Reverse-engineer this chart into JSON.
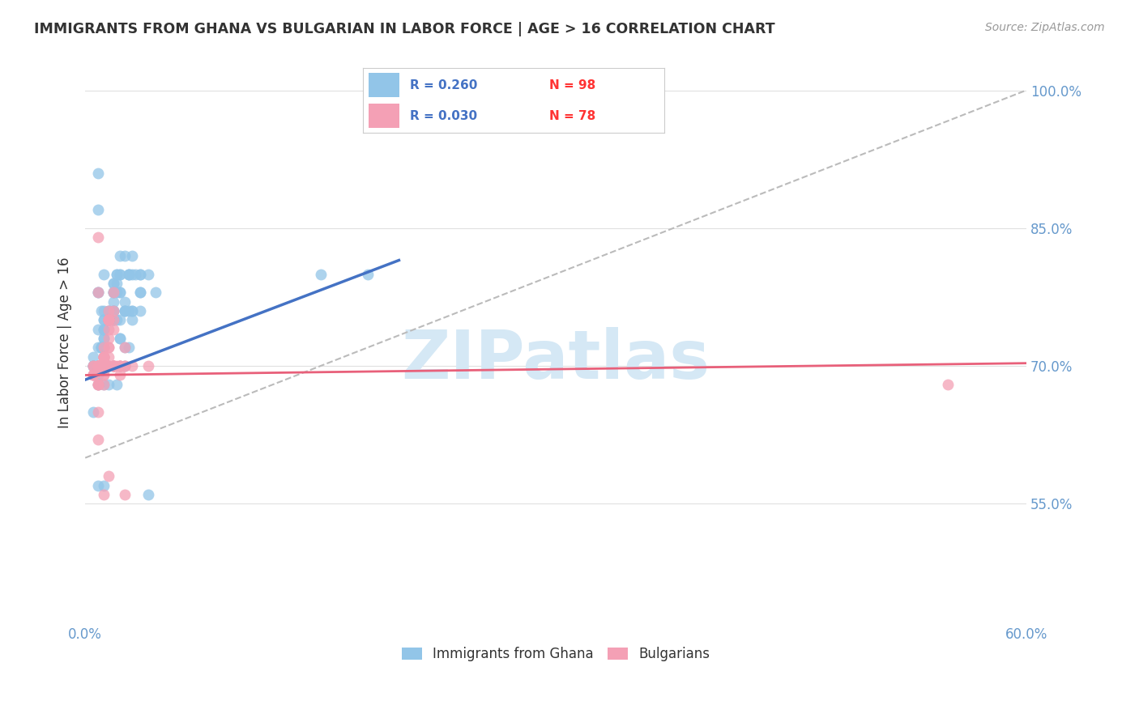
{
  "title": "IMMIGRANTS FROM GHANA VS BULGARIAN IN LABOR FORCE | AGE > 16 CORRELATION CHART",
  "source": "Source: ZipAtlas.com",
  "ylabel": "In Labor Force | Age > 16",
  "xlim": [
    0.0,
    0.6
  ],
  "ylim": [
    0.42,
    1.03
  ],
  "yticks": [
    0.55,
    0.7,
    0.85,
    1.0
  ],
  "ytick_labels": [
    "55.0%",
    "70.0%",
    "85.0%",
    "100.0%"
  ],
  "xticks": [
    0.0,
    0.1,
    0.2,
    0.3,
    0.4,
    0.5,
    0.6
  ],
  "xtick_labels": [
    "0.0%",
    "",
    "",
    "",
    "",
    "",
    "60.0%"
  ],
  "ghana_R": 0.26,
  "ghana_N": 98,
  "bulgarian_R": 0.03,
  "bulgarian_N": 78,
  "ghana_color": "#92C5E8",
  "bulgarian_color": "#F4A0B5",
  "ghana_line_color": "#4472C4",
  "bulgarian_line_color": "#E8607A",
  "dashed_line_color": "#BBBBBB",
  "background_color": "#FFFFFF",
  "grid_color": "#E0E0E0",
  "title_color": "#333333",
  "right_tick_color": "#6699CC",
  "watermark_text": "ZIPatlas",
  "watermark_color": "#D5E8F5",
  "ghana_scatter_x": [
    0.005,
    0.008,
    0.01,
    0.012,
    0.015,
    0.018,
    0.02,
    0.022,
    0.025,
    0.028,
    0.005,
    0.008,
    0.01,
    0.012,
    0.015,
    0.018,
    0.02,
    0.022,
    0.025,
    0.008,
    0.005,
    0.01,
    0.015,
    0.02,
    0.025,
    0.03,
    0.035,
    0.008,
    0.012,
    0.018,
    0.005,
    0.01,
    0.015,
    0.02,
    0.025,
    0.03,
    0.008,
    0.012,
    0.005,
    0.018,
    0.008,
    0.022,
    0.012,
    0.035,
    0.02,
    0.01,
    0.028,
    0.015,
    0.025,
    0.018,
    0.04,
    0.008,
    0.012,
    0.018,
    0.03,
    0.035,
    0.045,
    0.022,
    0.008,
    0.012,
    0.018,
    0.03,
    0.025,
    0.012,
    0.008,
    0.035,
    0.02,
    0.025,
    0.03,
    0.008,
    0.005,
    0.012,
    0.018,
    0.008,
    0.022,
    0.028,
    0.035,
    0.04,
    0.012,
    0.018,
    0.008,
    0.022,
    0.018,
    0.012,
    0.028,
    0.008,
    0.018,
    0.15,
    0.18,
    0.022,
    0.008,
    0.012,
    0.018,
    0.028,
    0.022,
    0.032,
    0.012,
    0.018
  ],
  "ghana_scatter_y": [
    0.7,
    0.91,
    0.72,
    0.68,
    0.7,
    0.75,
    0.78,
    0.73,
    0.7,
    0.72,
    0.71,
    0.74,
    0.76,
    0.8,
    0.76,
    0.7,
    0.68,
    0.73,
    0.77,
    0.87,
    0.7,
    0.72,
    0.76,
    0.79,
    0.72,
    0.75,
    0.76,
    0.78,
    0.72,
    0.78,
    0.7,
    0.72,
    0.68,
    0.75,
    0.76,
    0.76,
    0.78,
    0.7,
    0.7,
    0.75,
    0.72,
    0.75,
    0.76,
    0.78,
    0.8,
    0.72,
    0.76,
    0.75,
    0.76,
    0.75,
    0.56,
    0.7,
    0.73,
    0.76,
    0.76,
    0.78,
    0.78,
    0.8,
    0.69,
    0.74,
    0.78,
    0.82,
    0.82,
    0.75,
    0.7,
    0.8,
    0.8,
    0.76,
    0.8,
    0.7,
    0.65,
    0.73,
    0.77,
    0.69,
    0.78,
    0.8,
    0.8,
    0.8,
    0.75,
    0.76,
    0.68,
    0.82,
    0.79,
    0.74,
    0.8,
    0.7,
    0.79,
    0.8,
    0.8,
    0.78,
    0.57,
    0.57,
    0.78,
    0.8,
    0.8,
    0.8,
    0.74,
    0.76
  ],
  "bulgarian_scatter_x": [
    0.005,
    0.008,
    0.01,
    0.012,
    0.015,
    0.018,
    0.008,
    0.012,
    0.015,
    0.005,
    0.018,
    0.008,
    0.02,
    0.012,
    0.015,
    0.008,
    0.005,
    0.018,
    0.012,
    0.015,
    0.008,
    0.022,
    0.012,
    0.015,
    0.018,
    0.008,
    0.012,
    0.025,
    0.015,
    0.008,
    0.005,
    0.012,
    0.018,
    0.015,
    0.022,
    0.008,
    0.012,
    0.03,
    0.015,
    0.018,
    0.008,
    0.012,
    0.015,
    0.022,
    0.008,
    0.018,
    0.012,
    0.015,
    0.025,
    0.008,
    0.005,
    0.012,
    0.015,
    0.022,
    0.018,
    0.008,
    0.012,
    0.015,
    0.005,
    0.018,
    0.008,
    0.022,
    0.012,
    0.025,
    0.015,
    0.008,
    0.012,
    0.018,
    0.015,
    0.008,
    0.025,
    0.04,
    0.55,
    0.012,
    0.015,
    0.008,
    0.012,
    0.015
  ],
  "bulgarian_scatter_y": [
    0.7,
    0.78,
    0.7,
    0.68,
    0.72,
    0.75,
    0.65,
    0.69,
    0.71,
    0.69,
    0.74,
    0.68,
    0.7,
    0.7,
    0.73,
    0.68,
    0.69,
    0.76,
    0.69,
    0.72,
    0.7,
    0.69,
    0.71,
    0.74,
    0.7,
    0.68,
    0.7,
    0.7,
    0.75,
    0.7,
    0.69,
    0.71,
    0.7,
    0.75,
    0.7,
    0.7,
    0.7,
    0.7,
    0.76,
    0.7,
    0.7,
    0.72,
    0.75,
    0.7,
    0.7,
    0.7,
    0.71,
    0.75,
    0.7,
    0.7,
    0.7,
    0.71,
    0.75,
    0.7,
    0.7,
    0.7,
    0.7,
    0.75,
    0.69,
    0.78,
    0.7,
    0.7,
    0.7,
    0.72,
    0.7,
    0.7,
    0.71,
    0.7,
    0.75,
    0.84,
    0.56,
    0.7,
    0.68,
    0.56,
    0.58,
    0.62,
    0.7,
    0.7
  ],
  "ghana_line_x": [
    0.0,
    0.2
  ],
  "ghana_line_y": [
    0.685,
    0.815
  ],
  "bulgarian_line_x": [
    0.0,
    0.6
  ],
  "bulgarian_line_y": [
    0.69,
    0.703
  ],
  "dashed_line_x": [
    0.0,
    0.6
  ],
  "dashed_line_y": [
    0.6,
    1.0
  ]
}
